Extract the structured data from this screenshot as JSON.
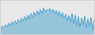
{
  "chart_data": {
    "type": "area",
    "values": [
      -1.5,
      -0.8,
      -1.2,
      -0.5,
      -0.9,
      -0.2,
      -0.7,
      0.1,
      -0.5,
      0.3,
      -0.3,
      0.6,
      -0.1,
      0.9,
      0.2,
      1.2,
      0.5,
      1.5,
      0.8,
      1.8,
      1.0,
      2.1,
      1.3,
      2.4,
      1.6,
      2.7,
      1.9,
      3.0,
      2.2,
      2.6,
      2.5,
      2.9,
      2.1,
      2.7,
      1.8,
      2.5,
      1.5,
      2.3,
      1.2,
      2.0,
      0.8,
      1.7,
      0.4,
      1.4,
      0.1,
      1.8,
      -0.3,
      1.5,
      -0.6,
      1.2,
      -1.0,
      0.9,
      -0.5,
      1.3,
      -1.2,
      0.7,
      -0.8,
      1.0,
      -1.5,
      0.5
    ],
    "color": "#3399cc",
    "ylim": [
      -2.5,
      4.5
    ],
    "tick_labels": false
  }
}
